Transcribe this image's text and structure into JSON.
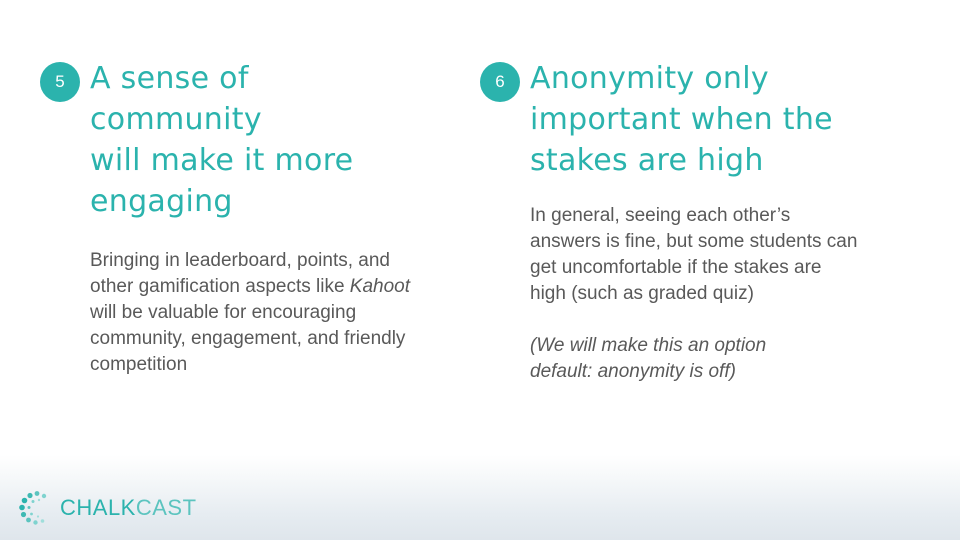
{
  "left": {
    "number": "5",
    "heading_lines": [
      "A sense of community",
      "will make it more",
      "engaging"
    ],
    "body_before": "Bringing in leaderboard, points, and other gamification aspects like",
    "body_em": "Kahoot",
    "body_after": "will be valuable for encouraging community, engagement, and friendly competition"
  },
  "right": {
    "number": "6",
    "heading_lines": [
      "Anonymity only",
      "important when the",
      "stakes are high"
    ],
    "body": "In general, seeing each other’s answers is fine, but some students can get uncomfortable if the stakes are high (such as graded quiz)",
    "note_lines": [
      "(We will make this an option",
      "default: anonymity is off)"
    ]
  },
  "logo": {
    "chalk": "CHALK",
    "cast": "CAST",
    "icon": "chalkcast-dotted-c-icon"
  },
  "colors": {
    "accent": "#2bb3ad",
    "body_text": "#595959",
    "background": "#ffffff"
  }
}
